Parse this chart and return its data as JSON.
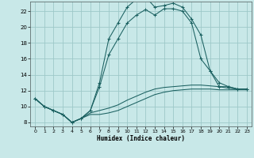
{
  "xlabel": "Humidex (Indice chaleur)",
  "bg_color": "#c8e8e8",
  "grid_color": "#9ec8c8",
  "line_color": "#1a6060",
  "xlim": [
    -0.5,
    23.5
  ],
  "ylim": [
    7.5,
    23.2
  ],
  "yticks": [
    8,
    10,
    12,
    14,
    16,
    18,
    20,
    22
  ],
  "xticks": [
    0,
    1,
    2,
    3,
    4,
    5,
    6,
    7,
    8,
    9,
    10,
    11,
    12,
    13,
    14,
    15,
    16,
    17,
    18,
    19,
    20,
    21,
    22,
    23
  ],
  "series": [
    {
      "x": [
        0,
        1,
        2,
        3,
        4,
        5,
        6,
        7,
        8,
        9,
        10,
        11,
        12,
        13,
        14,
        15,
        16,
        17,
        18,
        19,
        20,
        21,
        22,
        23
      ],
      "y": [
        11,
        10,
        9.5,
        9,
        8,
        8.5,
        9.0,
        9.0,
        9.2,
        9.5,
        10.0,
        10.5,
        11.0,
        11.5,
        11.8,
        12.0,
        12.1,
        12.2,
        12.2,
        12.2,
        12.1,
        12.1,
        12.1,
        12.1
      ],
      "marker": false
    },
    {
      "x": [
        0,
        1,
        2,
        3,
        4,
        5,
        6,
        7,
        8,
        9,
        10,
        11,
        12,
        13,
        14,
        15,
        16,
        17,
        18,
        19,
        20,
        21,
        22,
        23
      ],
      "y": [
        11,
        10,
        9.5,
        9,
        8,
        8.5,
        9.2,
        9.5,
        9.8,
        10.2,
        10.8,
        11.3,
        11.8,
        12.2,
        12.4,
        12.5,
        12.6,
        12.7,
        12.7,
        12.6,
        12.5,
        12.3,
        12.2,
        12.2
      ],
      "marker": false
    },
    {
      "x": [
        0,
        1,
        2,
        3,
        4,
        5,
        6,
        7,
        8,
        9,
        10,
        11,
        12,
        13,
        14,
        15,
        16,
        17,
        18,
        19,
        20,
        21,
        22,
        23
      ],
      "y": [
        11,
        10,
        9.5,
        9,
        8,
        8.5,
        9.5,
        13.0,
        18.5,
        20.5,
        22.5,
        23.5,
        23.8,
        22.5,
        22.7,
        23.0,
        22.5,
        21.0,
        19.0,
        14.5,
        13.0,
        12.5,
        12.2,
        12.2
      ],
      "marker": true
    },
    {
      "x": [
        0,
        1,
        2,
        3,
        4,
        5,
        6,
        7,
        8,
        9,
        10,
        11,
        12,
        13,
        14,
        15,
        16,
        17,
        18,
        19,
        20,
        21,
        22,
        23
      ],
      "y": [
        11,
        10,
        9.5,
        9,
        8,
        8.5,
        9.5,
        12.5,
        16.5,
        18.5,
        20.5,
        21.5,
        22.2,
        21.5,
        22.3,
        22.3,
        22.0,
        20.5,
        16.0,
        14.5,
        12.5,
        12.5,
        12.2,
        12.2
      ],
      "marker": true
    }
  ]
}
